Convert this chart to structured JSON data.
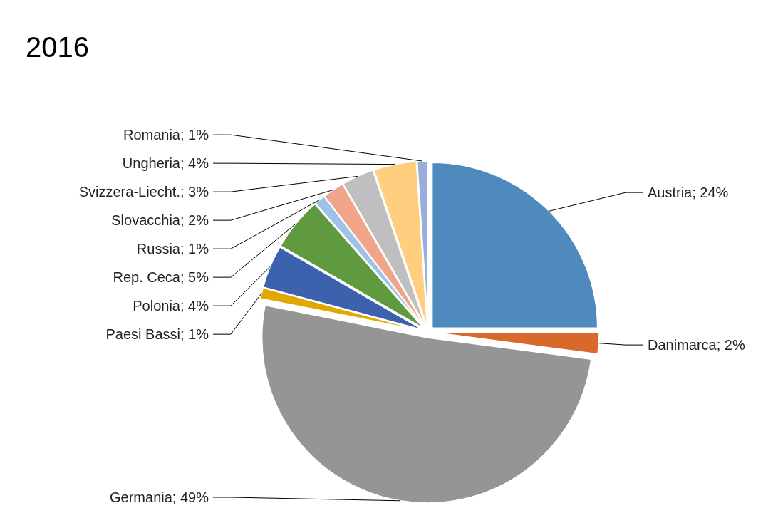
{
  "chart_data": {
    "type": "pie",
    "title": "2016",
    "categories": [
      "Austria",
      "Danimarca",
      "Germania",
      "Paesi Bassi",
      "Polonia",
      "Rep. Ceca",
      "Russia",
      "Slovacchia",
      "Svizzera-Liecht.",
      "Ungheria",
      "Romania"
    ],
    "values": [
      24,
      2,
      49,
      1,
      4,
      5,
      1,
      2,
      3,
      4,
      1
    ],
    "value_labels": [
      "24%",
      "2%",
      "49%",
      "1%",
      "4%",
      "5%",
      "1%",
      "2%",
      "3%",
      "4%",
      "1%"
    ],
    "colors": [
      "#4f8abe",
      "#d9692a",
      "#959595",
      "#e0a800",
      "#3c62ad",
      "#5f9a3e",
      "#9dc3e6",
      "#f0a58a",
      "#bfbfbf",
      "#ffcf7f",
      "#9aaedc"
    ]
  }
}
